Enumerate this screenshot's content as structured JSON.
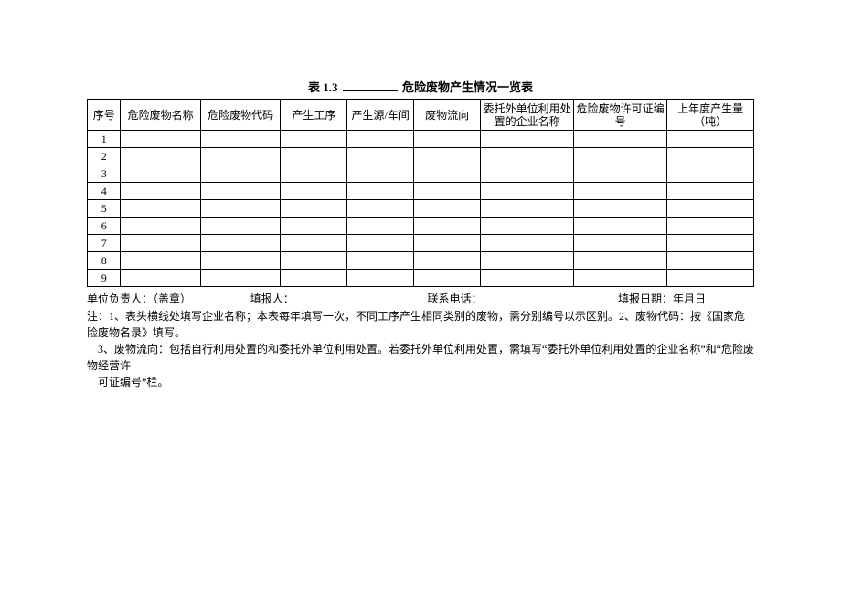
{
  "title_prefix": "表 1.3",
  "title_suffix": "危险废物产生情况一览表",
  "headers": {
    "no": "序号",
    "name": "危险废物名称",
    "code": "危险废物代码",
    "process": "产生工序",
    "source": "产生源/车间",
    "flow": "废物流向",
    "entrust": "委托外单位利用处置的企业名称",
    "permit": "危险废物许可证编号",
    "amount": "上年度产生量（吨）"
  },
  "rows": [
    "1",
    "2",
    "3",
    "4",
    "5",
    "6",
    "7",
    "8",
    "9"
  ],
  "footer": {
    "leader": "单位负责人：（盖章）",
    "filler": "填报人：",
    "phone": "联系电话：",
    "date": "填报日期：年月日"
  },
  "notes": {
    "n1": "注：1、表头横线处填写企业名称；本表每年填写一次，不同工序产生相同类别的废物，需分别编号以示区别。2、废物代码：按《国家危险废物名录》填写。",
    "n2": "3、废物流向：包括自行利用处置的和委托外单位利用处置。若委托外单位利用处置，需填写“委托外单位利用处置的企业名称”和“危险废物经营许",
    "n3": "可证编号”栏。"
  }
}
